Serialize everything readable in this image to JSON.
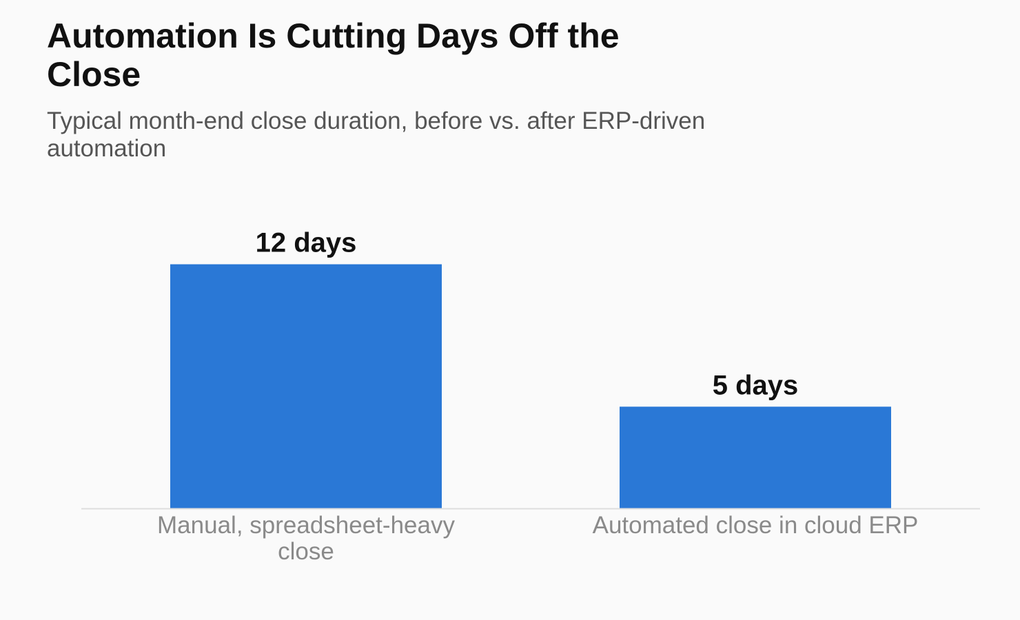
{
  "chart_data": {
    "type": "bar",
    "title": "Automation Is Cutting Days Off the Close",
    "subtitle": "Typical month-end close duration, before vs. after ERP-driven automation",
    "categories": [
      [
        "Manual, spreadsheet-heavy",
        "close"
      ],
      [
        "Automated close in cloud ERP"
      ]
    ],
    "values": [
      12,
      5
    ],
    "data_labels": [
      "12 days",
      "5 days"
    ],
    "unit": "days",
    "ylim": [
      0,
      15
    ],
    "grid": false,
    "bar_color": "#2a78d6",
    "baseline_color": "#dddddd"
  }
}
